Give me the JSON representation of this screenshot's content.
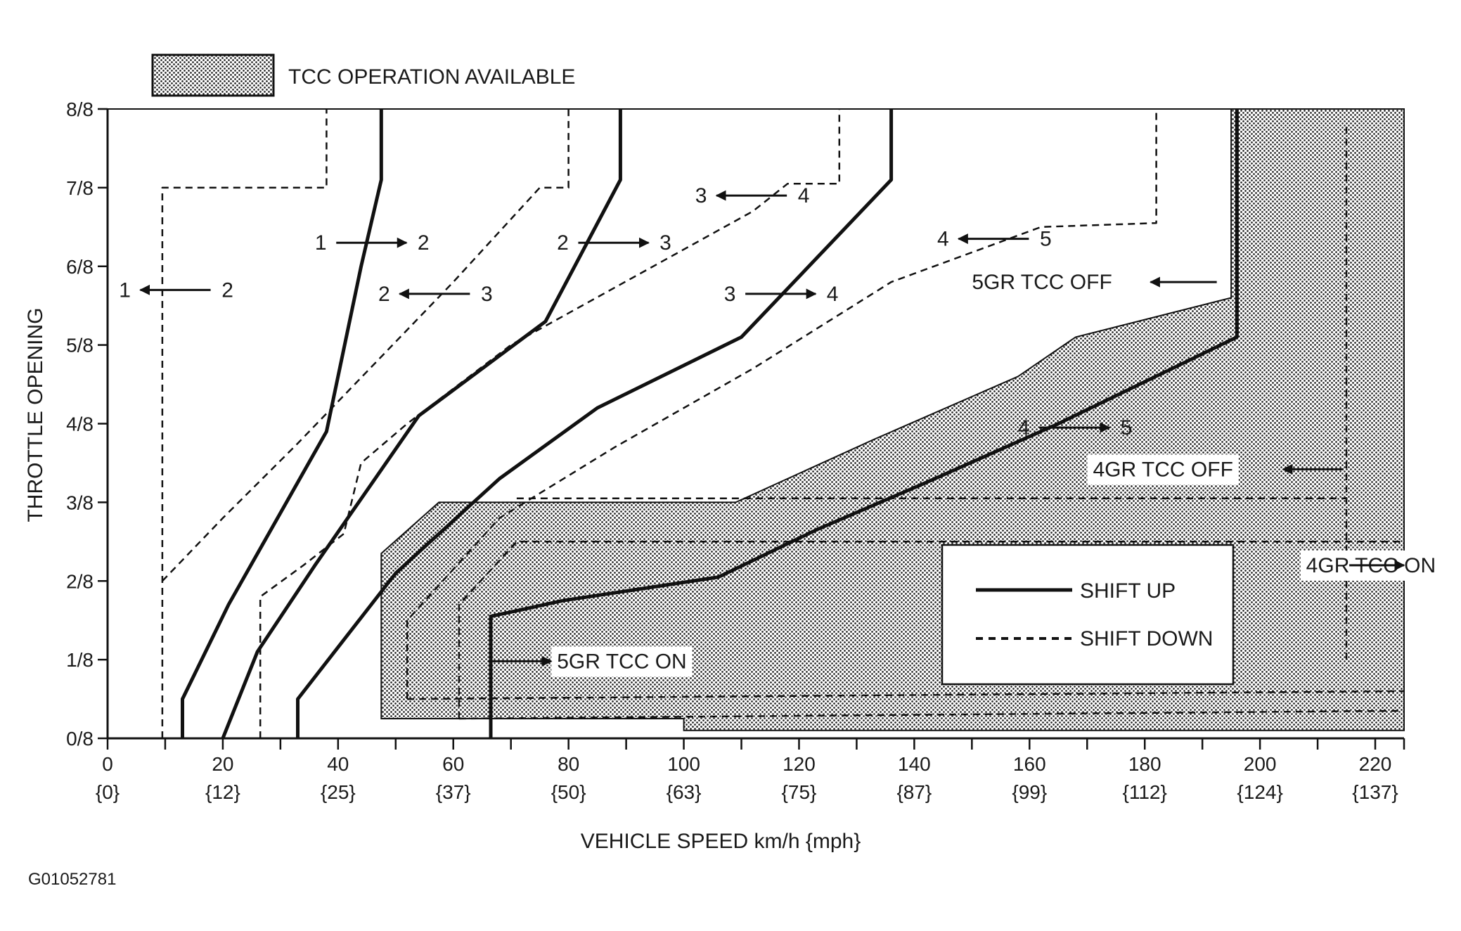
{
  "figure_id": "G01052781",
  "legend_top": {
    "swatch": "dotted-hatch",
    "label": "TCC OPERATION AVAILABLE"
  },
  "legend_box": [
    {
      "style": "solid",
      "label": "SHIFT UP"
    },
    {
      "style": "dashed",
      "label": "SHIFT DOWN"
    }
  ],
  "colors": {
    "ink": "#111111",
    "hatch_dot": "#222222",
    "background": "#ffffff"
  },
  "chart_data": {
    "type": "line",
    "title": "",
    "xlabel": "VEHICLE SPEED km/h {mph}",
    "ylabel": "THROTTLE OPENING",
    "xlim": [
      0,
      225
    ],
    "ylim": [
      0,
      8
    ],
    "x_ticks": [
      {
        "value": 0,
        "kmh": "0",
        "mph": "{0}"
      },
      {
        "value": 20,
        "kmh": "20",
        "mph": "{12}"
      },
      {
        "value": 40,
        "kmh": "40",
        "mph": "{25}"
      },
      {
        "value": 60,
        "kmh": "60",
        "mph": "{37}"
      },
      {
        "value": 80,
        "kmh": "80",
        "mph": "{50}"
      },
      {
        "value": 100,
        "kmh": "100",
        "mph": "{63}"
      },
      {
        "value": 120,
        "kmh": "120",
        "mph": "{75}"
      },
      {
        "value": 140,
        "kmh": "140",
        "mph": "{87}"
      },
      {
        "value": 160,
        "kmh": "160",
        "mph": "{99}"
      },
      {
        "value": 180,
        "kmh": "180",
        "mph": "{112}"
      },
      {
        "value": 200,
        "kmh": "200",
        "mph": "{124}"
      },
      {
        "value": 220,
        "kmh": "220",
        "mph": "{137}"
      }
    ],
    "y_ticks": [
      {
        "value": 0,
        "label": "0/8"
      },
      {
        "value": 1,
        "label": "1/8"
      },
      {
        "value": 2,
        "label": "2/8"
      },
      {
        "value": 3,
        "label": "3/8"
      },
      {
        "value": 4,
        "label": "4/8"
      },
      {
        "value": 5,
        "label": "5/8"
      },
      {
        "value": 6,
        "label": "6/8"
      },
      {
        "value": 7,
        "label": "7/8"
      },
      {
        "value": 8,
        "label": "8/8"
      }
    ],
    "tcc_regions": [
      {
        "points": [
          [
            47.5,
            0.25
          ],
          [
            47.5,
            2.35
          ],
          [
            57.5,
            3
          ],
          [
            109,
            3
          ],
          [
            133,
            3.8
          ],
          [
            158,
            4.6
          ],
          [
            168,
            5.1
          ],
          [
            195,
            5.6
          ],
          [
            195,
            8
          ],
          [
            225,
            8
          ],
          [
            225,
            0.1
          ],
          [
            100,
            0.1
          ],
          [
            100,
            0.25
          ]
        ]
      }
    ],
    "series": [
      {
        "style": "solid",
        "points": [
          [
            13,
            0
          ],
          [
            13,
            0.5
          ],
          [
            21,
            1.7
          ],
          [
            38,
            3.9
          ],
          [
            44,
            6
          ],
          [
            47.5,
            7.1
          ],
          [
            47.5,
            8
          ]
        ]
      },
      {
        "style": "solid",
        "points": [
          [
            20,
            0
          ],
          [
            26,
            1.1
          ],
          [
            36,
            2.2
          ],
          [
            54,
            4.1
          ],
          [
            76,
            5.3
          ],
          [
            89,
            7.1
          ],
          [
            89,
            8
          ]
        ]
      },
      {
        "style": "solid",
        "points": [
          [
            33,
            0
          ],
          [
            33,
            0.5
          ],
          [
            50,
            2.1
          ],
          [
            68,
            3.3
          ],
          [
            85,
            4.2
          ],
          [
            110,
            5.1
          ],
          [
            136,
            7.1
          ],
          [
            136,
            8
          ]
        ]
      },
      {
        "style": "solid",
        "points": [
          [
            66.5,
            0
          ],
          [
            66.5,
            1.55
          ],
          [
            79,
            1.75
          ],
          [
            106,
            2.05
          ],
          [
            123,
            2.65
          ],
          [
            142,
            3.25
          ],
          [
            165,
            4
          ],
          [
            196,
            5.1
          ],
          [
            196,
            8
          ]
        ]
      },
      {
        "style": "dashed",
        "points": [
          [
            9.5,
            0
          ],
          [
            9.5,
            7
          ],
          [
            38,
            7
          ],
          [
            38,
            8
          ]
        ]
      },
      {
        "style": "dashed",
        "points": [
          [
            9.5,
            2
          ],
          [
            20,
            2.8
          ],
          [
            33,
            3.75
          ],
          [
            60,
            5.8
          ],
          [
            75,
            7
          ],
          [
            80,
            7
          ],
          [
            80,
            8
          ]
        ]
      },
      {
        "style": "dashed",
        "points": [
          [
            26.5,
            0
          ],
          [
            26.5,
            1.8
          ],
          [
            34,
            2.2
          ],
          [
            41,
            2.6
          ],
          [
            44,
            3.5
          ],
          [
            52,
            4
          ],
          [
            70,
            5
          ],
          [
            112,
            6.7
          ],
          [
            118,
            7.05
          ],
          [
            127,
            7.05
          ],
          [
            127,
            8
          ]
        ]
      },
      {
        "style": "dashed",
        "points": [
          [
            52,
            0.5
          ],
          [
            52,
            1.5
          ],
          [
            68,
            2.8
          ],
          [
            88,
            3.7
          ],
          [
            112,
            4.7
          ],
          [
            136,
            5.8
          ],
          [
            162,
            6.5
          ],
          [
            182,
            6.55
          ],
          [
            182,
            8
          ]
        ]
      },
      {
        "style": "dashed",
        "points": [
          [
            61,
            0.25
          ],
          [
            61,
            1.7
          ],
          [
            71,
            2.5
          ],
          [
            225,
            2.5
          ]
        ]
      },
      {
        "style": "dashed",
        "points": [
          [
            52,
            0.5
          ],
          [
            225,
            0.6
          ]
        ]
      },
      {
        "style": "dashed",
        "points": [
          [
            61,
            0.25
          ],
          [
            225,
            0.35
          ]
        ]
      },
      {
        "style": "dashed",
        "points": [
          [
            71,
            3.05
          ],
          [
            215,
            3.05
          ]
        ]
      },
      {
        "style": "dashed",
        "points": [
          [
            215,
            1
          ],
          [
            215,
            7.8
          ]
        ]
      }
    ],
    "shift_labels": [
      {
        "from": "1",
        "to": "2",
        "dir": "left",
        "x": 3,
        "y": 5.7
      },
      {
        "from": "1",
        "to": "2",
        "dir": "right",
        "x": 37,
        "y": 6.3
      },
      {
        "from": "2",
        "to": "3",
        "dir": "left",
        "x": 48,
        "y": 5.65
      },
      {
        "from": "2",
        "to": "3",
        "dir": "right",
        "x": 79,
        "y": 6.3
      },
      {
        "from": "3",
        "to": "4",
        "dir": "left",
        "x": 103,
        "y": 6.9
      },
      {
        "from": "3",
        "to": "4",
        "dir": "right",
        "x": 108,
        "y": 5.65
      },
      {
        "from": "4",
        "to": "5",
        "dir": "left",
        "x": 145,
        "y": 6.35
      },
      {
        "from": "4",
        "to": "5",
        "dir": "right",
        "x": 159,
        "y": 3.95
      }
    ],
    "annotations": [
      {
        "text": "5GR TCC OFF",
        "x": 150,
        "y": 5.8,
        "arrow_from": 192.5,
        "arrow_to": 181
      },
      {
        "text": "4GR TCC OFF",
        "x": 171,
        "y": 3.42,
        "arrow_from": 214.5,
        "arrow_to": 204
      },
      {
        "text": "4GR TCC ON",
        "x": 208,
        "y": 2.2,
        "arrow_from": 215.5,
        "arrow_to": 225
      },
      {
        "text": "5GR TCC ON",
        "x": 78,
        "y": 0.98,
        "arrow_from": 66,
        "arrow_to": 77
      }
    ],
    "grid": false,
    "legend_position": "lower-right"
  }
}
